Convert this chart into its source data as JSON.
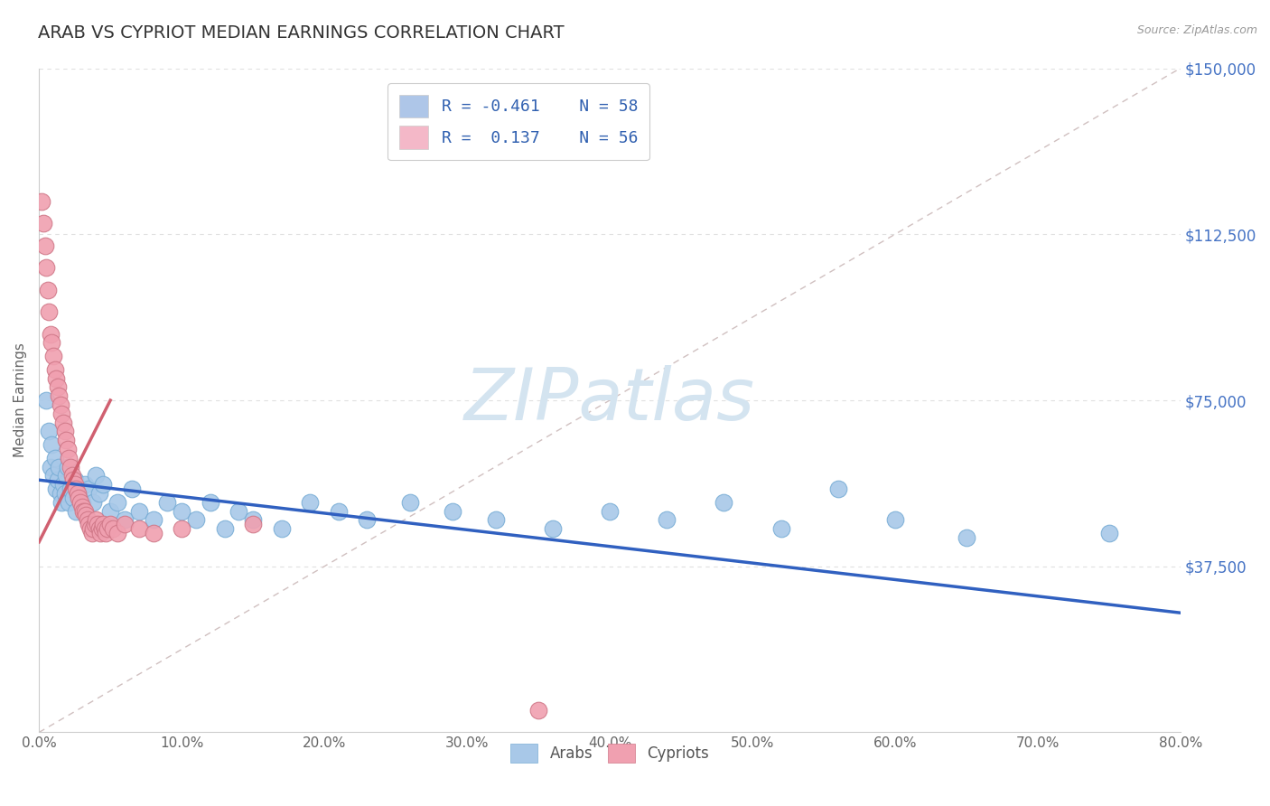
{
  "title": "ARAB VS CYPRIOT MEDIAN EARNINGS CORRELATION CHART",
  "source": "Source: ZipAtlas.com",
  "ylabel": "Median Earnings",
  "yticks": [
    0,
    37500,
    75000,
    112500,
    150000
  ],
  "ytick_labels": [
    "",
    "$37,500",
    "$75,000",
    "$112,500",
    "$150,000"
  ],
  "legend_entries": [
    {
      "label": "Arabs",
      "R": -0.461,
      "N": 58,
      "color": "#aec6e8"
    },
    {
      "label": "Cypriots",
      "R": 0.137,
      "N": 56,
      "color": "#f4b8c8"
    }
  ],
  "arab_color": "#a8c8e8",
  "arab_edge": "#7aaed6",
  "cypriot_color": "#f0a0b0",
  "cypriot_edge": "#d07888",
  "arab_line_color": "#3060c0",
  "cypriot_line_color": "#d06070",
  "diagonal_color": "#d0c0c0",
  "watermark_text": "ZIPatlas",
  "watermark_color": "#d4e4f0",
  "background_color": "#ffffff",
  "arab_scatter_x": [
    0.005,
    0.007,
    0.008,
    0.009,
    0.01,
    0.011,
    0.012,
    0.013,
    0.014,
    0.015,
    0.016,
    0.017,
    0.018,
    0.019,
    0.02,
    0.021,
    0.022,
    0.024,
    0.025,
    0.026,
    0.028,
    0.03,
    0.032,
    0.034,
    0.035,
    0.038,
    0.04,
    0.042,
    0.045,
    0.05,
    0.055,
    0.06,
    0.065,
    0.07,
    0.08,
    0.09,
    0.1,
    0.11,
    0.12,
    0.13,
    0.14,
    0.15,
    0.17,
    0.19,
    0.21,
    0.23,
    0.26,
    0.29,
    0.32,
    0.36,
    0.4,
    0.44,
    0.48,
    0.52,
    0.56,
    0.6,
    0.65,
    0.75
  ],
  "arab_scatter_y": [
    75000,
    68000,
    60000,
    65000,
    58000,
    62000,
    55000,
    57000,
    60000,
    54000,
    52000,
    56000,
    54000,
    58000,
    60000,
    52000,
    55000,
    53000,
    57000,
    50000,
    54000,
    52000,
    56000,
    48000,
    55000,
    52000,
    58000,
    54000,
    56000,
    50000,
    52000,
    48000,
    55000,
    50000,
    48000,
    52000,
    50000,
    48000,
    52000,
    46000,
    50000,
    48000,
    46000,
    52000,
    50000,
    48000,
    52000,
    50000,
    48000,
    46000,
    50000,
    48000,
    52000,
    46000,
    55000,
    48000,
    44000,
    45000
  ],
  "cypriot_scatter_x": [
    0.002,
    0.003,
    0.004,
    0.005,
    0.006,
    0.007,
    0.008,
    0.009,
    0.01,
    0.011,
    0.012,
    0.013,
    0.014,
    0.015,
    0.016,
    0.017,
    0.018,
    0.019,
    0.02,
    0.021,
    0.022,
    0.023,
    0.024,
    0.025,
    0.026,
    0.027,
    0.028,
    0.029,
    0.03,
    0.031,
    0.032,
    0.033,
    0.034,
    0.035,
    0.036,
    0.037,
    0.038,
    0.039,
    0.04,
    0.041,
    0.042,
    0.043,
    0.044,
    0.045,
    0.046,
    0.047,
    0.048,
    0.05,
    0.052,
    0.055,
    0.06,
    0.07,
    0.08,
    0.1,
    0.15,
    0.35
  ],
  "cypriot_scatter_y": [
    120000,
    115000,
    110000,
    105000,
    100000,
    95000,
    90000,
    88000,
    85000,
    82000,
    80000,
    78000,
    76000,
    74000,
    72000,
    70000,
    68000,
    66000,
    64000,
    62000,
    60000,
    58000,
    57000,
    56000,
    55000,
    54000,
    53000,
    52000,
    51000,
    50000,
    50000,
    49000,
    48000,
    47000,
    46000,
    45000,
    46000,
    47000,
    48000,
    47000,
    46000,
    45000,
    46000,
    47000,
    46000,
    45000,
    46000,
    47000,
    46000,
    45000,
    47000,
    46000,
    45000,
    46000,
    47000,
    5000
  ],
  "arab_line_x": [
    0.0,
    0.8
  ],
  "arab_line_y": [
    57000,
    27000
  ],
  "cypriot_line_x": [
    0.0,
    0.05
  ],
  "cypriot_line_y": [
    43000,
    75000
  ],
  "xmin": 0.0,
  "xmax": 0.8,
  "ymin": 0,
  "ymax": 150000,
  "xtick_vals": [
    0.0,
    0.1,
    0.2,
    0.3,
    0.4,
    0.5,
    0.6,
    0.7,
    0.8
  ],
  "xtick_labels": [
    "0.0%",
    "10.0%",
    "20.0%",
    "30.0%",
    "40.0%",
    "50.0%",
    "60.0%",
    "70.0%",
    "80.0%"
  ]
}
